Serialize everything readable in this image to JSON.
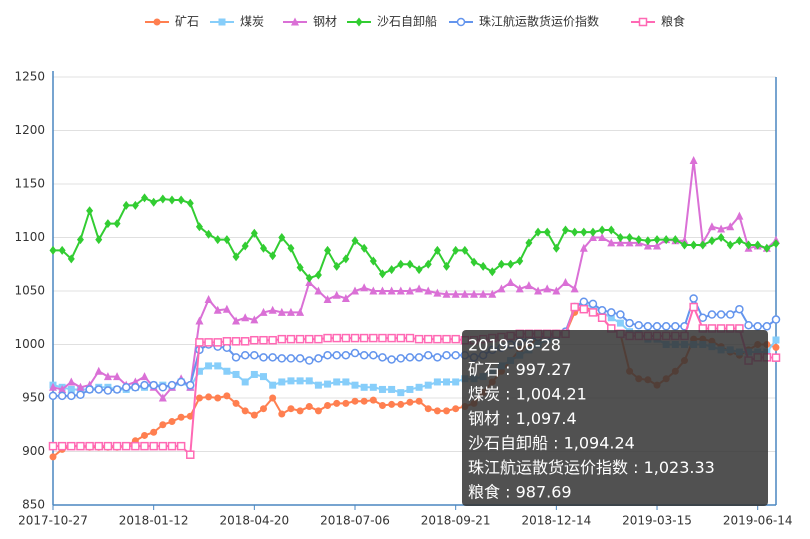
{
  "chart_data": {
    "type": "line",
    "categories": [
      "2017-10-27",
      null,
      null,
      null,
      null,
      null,
      null,
      null,
      null,
      null,
      null,
      "2018-01-12",
      null,
      null,
      null,
      null,
      null,
      null,
      null,
      null,
      null,
      null,
      "2018-04-20",
      null,
      null,
      null,
      null,
      null,
      null,
      null,
      null,
      null,
      null,
      "2018-07-06",
      null,
      null,
      null,
      null,
      null,
      null,
      null,
      null,
      null,
      null,
      "2018-09-21",
      null,
      null,
      null,
      null,
      null,
      null,
      null,
      null,
      null,
      null,
      "2018-12-14",
      null,
      null,
      null,
      null,
      null,
      null,
      null,
      null,
      null,
      null,
      "2019-03-15",
      null,
      null,
      null,
      null,
      null,
      null,
      null,
      null,
      null,
      null,
      "2019-06-14",
      null,
      "2019-06-28"
    ],
    "ylim": [
      850,
      1250
    ],
    "yticks": [
      850,
      900,
      950,
      1000,
      1050,
      1100,
      1150,
      1200,
      1250
    ],
    "grid": true,
    "legend": "top",
    "series": [
      {
        "name": "矿石",
        "color": "#ff7f50",
        "marker": "circle",
        "values": [
          895,
          902,
          905,
          905,
          904,
          904,
          904,
          904,
          905,
          910,
          915,
          918,
          925,
          928,
          932,
          933,
          950,
          951,
          950,
          952,
          945,
          938,
          934,
          940,
          950,
          935,
          940,
          938,
          942,
          938,
          943,
          945,
          945,
          947,
          947,
          948,
          943,
          944,
          944,
          946,
          947,
          940,
          938,
          938,
          940,
          942,
          945,
          955,
          965,
          975,
          985,
          995,
          1000,
          1005,
          1008,
          1010,
          1010,
          1030,
          1035,
          1032,
          1025,
          1015,
          1010,
          975,
          968,
          967,
          962,
          968,
          975,
          985,
          1005,
          1005,
          1003,
          998,
          993,
          990,
          995,
          1000,
          1000,
          997.27
        ]
      },
      {
        "name": "煤炭",
        "color": "#87cefa",
        "marker": "rect",
        "values": [
          962,
          960,
          958,
          958,
          958,
          960,
          960,
          958,
          958,
          960,
          960,
          962,
          962,
          960,
          965,
          960,
          975,
          980,
          980,
          975,
          972,
          965,
          972,
          970,
          962,
          965,
          966,
          966,
          966,
          962,
          963,
          965,
          965,
          962,
          960,
          960,
          958,
          958,
          955,
          958,
          960,
          962,
          965,
          965,
          965,
          968,
          968,
          970,
          975,
          980,
          985,
          990,
          995,
          1000,
          1005,
          1008,
          1010,
          1035,
          1038,
          1035,
          1030,
          1025,
          1020,
          1012,
          1010,
          1005,
          1005,
          1000,
          1000,
          1000,
          1000,
          1000,
          998,
          995,
          995,
          993,
          993,
          993,
          993,
          1004.21
        ]
      },
      {
        "name": "钢材",
        "color": "#da70d6",
        "marker": "triangle",
        "values": [
          960,
          958,
          965,
          960,
          962,
          975,
          970,
          970,
          962,
          965,
          970,
          960,
          950,
          960,
          968,
          960,
          1022,
          1042,
          1032,
          1033,
          1022,
          1025,
          1023,
          1030,
          1032,
          1030,
          1030,
          1030,
          1058,
          1050,
          1042,
          1046,
          1043,
          1050,
          1053,
          1050,
          1050,
          1050,
          1050,
          1050,
          1052,
          1050,
          1048,
          1047,
          1047,
          1047,
          1047,
          1047,
          1047,
          1052,
          1058,
          1052,
          1055,
          1050,
          1052,
          1050,
          1058,
          1052,
          1090,
          1100,
          1100,
          1095,
          1095,
          1095,
          1095,
          1092,
          1092,
          1098,
          1097,
          1097,
          1172,
          1095,
          1110,
          1108,
          1110,
          1120,
          1090,
          1092,
          1090,
          1097.4
        ]
      },
      {
        "name": "沙石自卸船",
        "color": "#32cd32",
        "marker": "diamond",
        "values": [
          1088,
          1088,
          1080,
          1098,
          1125,
          1098,
          1113,
          1113,
          1130,
          1130,
          1137,
          1133,
          1136,
          1135,
          1135,
          1132,
          1110,
          1103,
          1098,
          1098,
          1082,
          1092,
          1104,
          1090,
          1083,
          1100,
          1090,
          1072,
          1062,
          1065,
          1088,
          1073,
          1080,
          1097,
          1090,
          1078,
          1066,
          1070,
          1075,
          1075,
          1070,
          1075,
          1088,
          1073,
          1088,
          1088,
          1077,
          1073,
          1068,
          1075,
          1075,
          1078,
          1095,
          1105,
          1105,
          1090,
          1107,
          1105,
          1105,
          1105,
          1107,
          1107,
          1100,
          1100,
          1098,
          1097,
          1098,
          1098,
          1098,
          1093,
          1093,
          1093,
          1097,
          1100,
          1093,
          1097,
          1093,
          1093,
          1090,
          1094.24
        ]
      },
      {
        "name": "珠江航运散货运价指数",
        "color": "#6495ed",
        "marker": "emptyCircle",
        "values": [
          952,
          952,
          952,
          953,
          958,
          958,
          957,
          958,
          960,
          960,
          962,
          962,
          960,
          962,
          965,
          962,
          995,
          1000,
          998,
          997,
          988,
          990,
          990,
          988,
          988,
          987,
          987,
          987,
          985,
          987,
          990,
          990,
          990,
          992,
          990,
          990,
          988,
          986,
          987,
          988,
          988,
          990,
          988,
          990,
          990,
          990,
          988,
          990,
          995,
          997,
          1000,
          1003,
          1005,
          1007,
          1008,
          1010,
          1012,
          1035,
          1040,
          1038,
          1032,
          1030,
          1028,
          1020,
          1018,
          1017,
          1017,
          1017,
          1017,
          1017,
          1043,
          1025,
          1028,
          1028,
          1028,
          1033,
          1018,
          1017,
          1017,
          1023.33
        ]
      },
      {
        "name": "粮食",
        "color": "#ff69b4",
        "marker": "emptyRect",
        "values": [
          905,
          905,
          905,
          905,
          905,
          905,
          905,
          905,
          905,
          905,
          905,
          905,
          905,
          905,
          905,
          897,
          1002,
          1002,
          1002,
          1003,
          1003,
          1003,
          1004,
          1004,
          1004,
          1005,
          1005,
          1005,
          1005,
          1005,
          1006,
          1006,
          1006,
          1006,
          1006,
          1006,
          1006,
          1006,
          1006,
          1006,
          1005,
          1005,
          1005,
          1005,
          1005,
          1004,
          1004,
          1005,
          1006,
          1007,
          1008,
          1010,
          1010,
          1010,
          1010,
          1010,
          1010,
          1035,
          1033,
          1030,
          1025,
          1015,
          1010,
          1008,
          1008,
          1008,
          1008,
          1008,
          1008,
          1008,
          1035,
          1015,
          1015,
          1015,
          1015,
          1015,
          985,
          988,
          988,
          987.69
        ]
      }
    ],
    "tooltip": {
      "labels": [
        "997.27",
        "1,004.21",
        "1,097.4",
        "1,094.24",
        "1,023.33",
        "987.69"
      ]
    }
  }
}
